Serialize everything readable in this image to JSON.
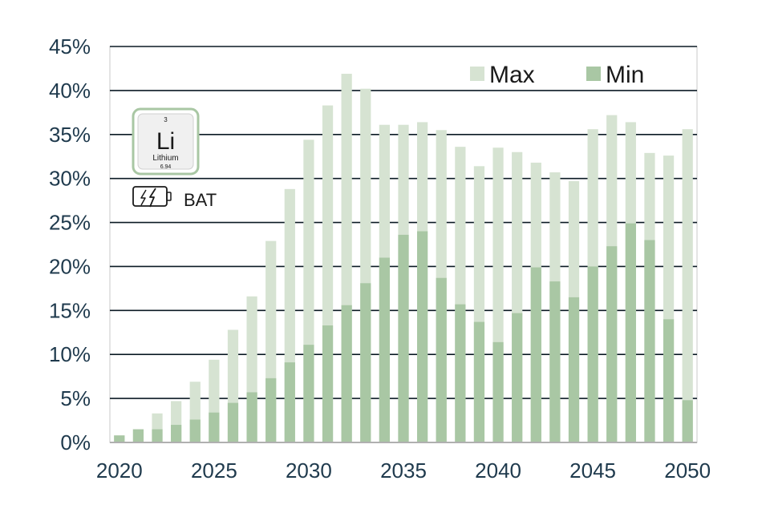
{
  "chart_data": {
    "type": "bar",
    "x": [
      2020,
      2021,
      2022,
      2023,
      2024,
      2025,
      2026,
      2027,
      2028,
      2029,
      2030,
      2031,
      2032,
      2033,
      2034,
      2035,
      2036,
      2037,
      2038,
      2039,
      2040,
      2041,
      2042,
      2043,
      2044,
      2045,
      2046,
      2047,
      2048,
      2049,
      2050
    ],
    "x_tick_labels": [
      "2020",
      "2025",
      "2030",
      "2035",
      "2040",
      "2045",
      "2050"
    ],
    "y_tick_labels": [
      "0%",
      "5%",
      "10%",
      "15%",
      "20%",
      "25%",
      "30%",
      "35%",
      "40%",
      "45%"
    ],
    "ylim": [
      0,
      45
    ],
    "y_unit": "%",
    "grid": "horizontal",
    "legend_position": "top-right",
    "series": [
      {
        "name": "Max",
        "color": "#d6e3d2",
        "values": [
          0.8,
          1.5,
          3.3,
          4.7,
          6.9,
          9.4,
          12.8,
          16.6,
          22.9,
          28.8,
          34.4,
          38.3,
          41.9,
          40.2,
          36.1,
          36.1,
          36.4,
          35.5,
          33.6,
          31.4,
          33.5,
          33.0,
          31.8,
          30.7,
          29.7,
          35.6,
          37.2,
          36.4,
          32.9,
          32.6,
          35.6
        ]
      },
      {
        "name": "Min",
        "color": "#a9c7a4",
        "values": [
          0.8,
          1.5,
          1.5,
          2.0,
          2.6,
          3.4,
          4.5,
          5.7,
          7.3,
          9.1,
          11.1,
          13.3,
          15.6,
          18.1,
          21.0,
          23.6,
          24.0,
          18.7,
          15.7,
          13.7,
          11.4,
          14.7,
          19.9,
          18.3,
          16.5,
          20.0,
          22.3,
          24.9,
          23.0,
          14.0,
          4.8
        ]
      }
    ]
  },
  "legend": {
    "max_label": "Max",
    "min_label": "Min"
  },
  "element_tile": {
    "atomic_number": "3",
    "symbol": "Li",
    "name": "Lithium",
    "atomic_mass": "6.94"
  },
  "battery_label": "BAT",
  "colors": {
    "grid": "#0b1a24",
    "axis": "#b0b0b0",
    "tick_text": "#1f3a4d"
  }
}
